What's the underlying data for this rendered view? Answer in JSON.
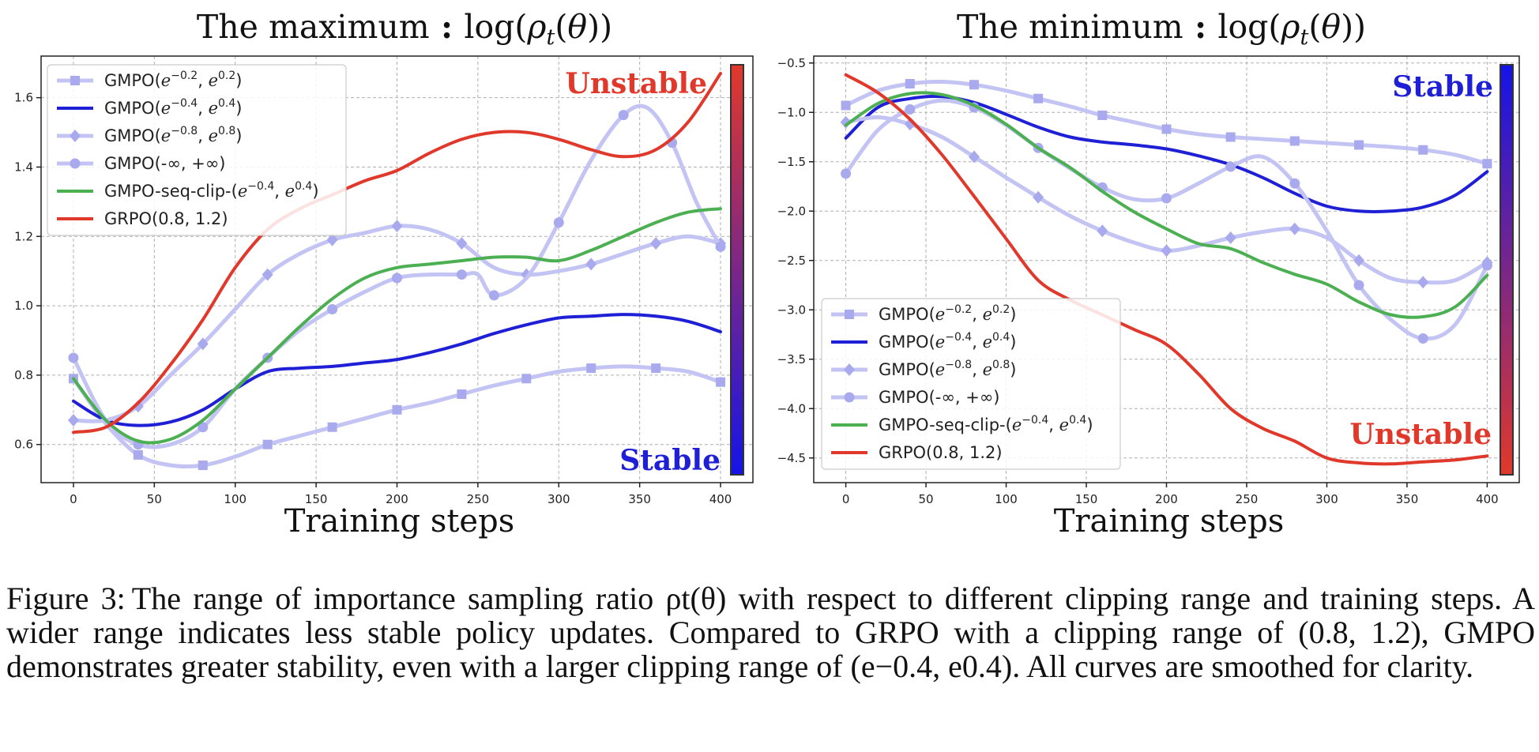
{
  "caption": {
    "label": "Figure 3:",
    "text": "The range of importance sampling ratio ρt(θ) with respect to different clipping range and training steps. A wider range indicates less stable policy updates. Compared to GRPO with a clipping range of (0.8, 1.2), GMPO demonstrates greater stability, even with a larger clipping range of (e−0.4, e0.4). All curves are smoothed for clarity."
  },
  "colors": {
    "faint": "#c3c3f4",
    "faint_marker": "#a9a9ee",
    "blue": "#1f1fd6",
    "green": "#4cb053",
    "red": "#e0392b",
    "grid": "#b0b0b0"
  },
  "chart_data": [
    {
      "type": "line",
      "title": "The maximum : log(ρt(θ))",
      "xlabel": "Training steps",
      "ylabel": "",
      "xlim": [
        -20,
        420
      ],
      "ylim": [
        0.49,
        1.72
      ],
      "xticks": [
        0,
        50,
        100,
        150,
        200,
        250,
        300,
        350,
        400
      ],
      "yticks": [
        0.6,
        0.8,
        1.0,
        1.2,
        1.4,
        1.6
      ],
      "ytick_labels": [
        "0.6",
        "0.8",
        "1.0",
        "1.2",
        "1.4",
        "1.6"
      ],
      "grid": true,
      "legend_position": "top-left",
      "colorbar": {
        "top_label": "Unstable",
        "bottom_label": "Stable",
        "top_color": "#e0392b",
        "bottom_color": "#1414e6"
      },
      "series": [
        {
          "name": "GMPO(e^{-0.2}, e^{0.2})",
          "legend": [
            "GMPO(",
            "e",
            "−0.2",
            ", ",
            "e",
            "0.2",
            ")"
          ],
          "style": "faint",
          "marker": "square",
          "x": [
            0,
            20,
            40,
            60,
            80,
            100,
            120,
            140,
            160,
            180,
            200,
            220,
            240,
            260,
            280,
            300,
            320,
            340,
            360,
            380,
            400
          ],
          "y": [
            0.79,
            0.66,
            0.57,
            0.54,
            0.54,
            0.565,
            0.6,
            0.625,
            0.65,
            0.675,
            0.7,
            0.72,
            0.745,
            0.77,
            0.79,
            0.81,
            0.82,
            0.825,
            0.82,
            0.81,
            0.78
          ]
        },
        {
          "name": "GMPO(e^{-0.4}, e^{0.4})",
          "legend": [
            "GMPO(",
            "e",
            "−0.4",
            ", ",
            "e",
            "0.4",
            ")"
          ],
          "style": "blue",
          "marker": "none",
          "x": [
            0,
            20,
            40,
            60,
            80,
            100,
            120,
            140,
            160,
            180,
            200,
            220,
            240,
            260,
            280,
            300,
            320,
            340,
            360,
            380,
            400
          ],
          "y": [
            0.725,
            0.67,
            0.655,
            0.665,
            0.7,
            0.76,
            0.81,
            0.82,
            0.825,
            0.835,
            0.845,
            0.865,
            0.89,
            0.92,
            0.945,
            0.965,
            0.97,
            0.975,
            0.97,
            0.955,
            0.925
          ]
        },
        {
          "name": "GMPO(e^{-0.8}, e^{0.8})",
          "legend": [
            "GMPO(",
            "e",
            "−0.8",
            ", ",
            "e",
            "0.8",
            ")"
          ],
          "style": "faint",
          "marker": "diamond",
          "x": [
            0,
            20,
            40,
            60,
            80,
            100,
            120,
            140,
            160,
            180,
            200,
            220,
            240,
            260,
            280,
            300,
            320,
            340,
            360,
            380,
            400
          ],
          "y": [
            0.67,
            0.67,
            0.71,
            0.8,
            0.89,
            0.99,
            1.09,
            1.15,
            1.19,
            1.21,
            1.23,
            1.22,
            1.18,
            1.11,
            1.09,
            1.1,
            1.12,
            1.15,
            1.18,
            1.2,
            1.18
          ]
        },
        {
          "name": "GMPO(-∞, +∞)",
          "legend": [
            "GMPO(-∞, +∞)"
          ],
          "style": "faint",
          "marker": "circle",
          "x": [
            0,
            20,
            40,
            60,
            80,
            100,
            120,
            140,
            160,
            180,
            200,
            220,
            240,
            250,
            260,
            280,
            300,
            320,
            340,
            355,
            370,
            385,
            400
          ],
          "y": [
            0.85,
            0.67,
            0.6,
            0.6,
            0.65,
            0.76,
            0.85,
            0.93,
            0.99,
            1.04,
            1.08,
            1.09,
            1.09,
            1.09,
            1.03,
            1.08,
            1.24,
            1.42,
            1.55,
            1.57,
            1.47,
            1.3,
            1.17
          ]
        },
        {
          "name": "GMPO-seq-clip-(e^{-0.4}, e^{0.4})",
          "legend": [
            "GMPO-seq-clip-(",
            "e",
            "−0.4",
            ", ",
            "e",
            "0.4",
            ")"
          ],
          "style": "green",
          "marker": "none",
          "x": [
            0,
            20,
            40,
            60,
            80,
            100,
            120,
            140,
            160,
            180,
            200,
            220,
            240,
            260,
            280,
            300,
            320,
            340,
            360,
            380,
            400
          ],
          "y": [
            0.79,
            0.67,
            0.61,
            0.615,
            0.67,
            0.76,
            0.85,
            0.94,
            1.02,
            1.08,
            1.11,
            1.12,
            1.13,
            1.14,
            1.14,
            1.13,
            1.16,
            1.2,
            1.24,
            1.27,
            1.28
          ]
        },
        {
          "name": "GRPO(0.8, 1.2)",
          "legend": [
            "GRPO(0.8, 1.2)"
          ],
          "style": "red",
          "marker": "none",
          "x": [
            0,
            20,
            40,
            60,
            80,
            100,
            120,
            140,
            160,
            180,
            200,
            220,
            240,
            260,
            280,
            300,
            320,
            340,
            360,
            380,
            400
          ],
          "y": [
            0.635,
            0.65,
            0.72,
            0.83,
            0.96,
            1.11,
            1.22,
            1.28,
            1.32,
            1.36,
            1.39,
            1.44,
            1.48,
            1.5,
            1.5,
            1.48,
            1.45,
            1.43,
            1.45,
            1.53,
            1.67
          ]
        }
      ]
    },
    {
      "type": "line",
      "title": "The minimum : log(ρt(θ))",
      "xlabel": "Training steps",
      "ylabel": "",
      "xlim": [
        -20,
        420
      ],
      "ylim": [
        -4.75,
        -0.43
      ],
      "xticks": [
        0,
        50,
        100,
        150,
        200,
        250,
        300,
        350,
        400
      ],
      "yticks": [
        -0.5,
        -1.0,
        -1.5,
        -2.0,
        -2.5,
        -3.0,
        -3.5,
        -4.0,
        -4.5
      ],
      "ytick_labels": [
        "−0.5",
        "−1.0",
        "−1.5",
        "−2.0",
        "−2.5",
        "−3.0",
        "−3.5",
        "−4.0",
        "−4.5"
      ],
      "grid": true,
      "legend_position": "bottom-left",
      "colorbar": {
        "top_label": "Stable",
        "bottom_label": "Unstable",
        "top_color": "#1414e6",
        "bottom_color": "#e0392b"
      },
      "series": [
        {
          "name": "GMPO(e^{-0.2}, e^{0.2})",
          "legend": [
            "GMPO(",
            "e",
            "−0.2",
            ", ",
            "e",
            "0.2",
            ")"
          ],
          "style": "faint",
          "marker": "square",
          "x": [
            0,
            20,
            40,
            60,
            80,
            100,
            120,
            140,
            160,
            180,
            200,
            220,
            240,
            260,
            280,
            300,
            320,
            340,
            360,
            380,
            400
          ],
          "y": [
            -0.93,
            -0.78,
            -0.71,
            -0.69,
            -0.72,
            -0.78,
            -0.86,
            -0.94,
            -1.03,
            -1.1,
            -1.17,
            -1.22,
            -1.25,
            -1.27,
            -1.29,
            -1.31,
            -1.33,
            -1.35,
            -1.38,
            -1.43,
            -1.52
          ]
        },
        {
          "name": "GMPO(e^{-0.4}, e^{0.4})",
          "legend": [
            "GMPO(",
            "e",
            "−0.4",
            ", ",
            "e",
            "0.4",
            ")"
          ],
          "style": "blue",
          "marker": "none",
          "x": [
            0,
            20,
            40,
            60,
            80,
            100,
            120,
            140,
            160,
            180,
            200,
            220,
            240,
            260,
            280,
            300,
            320,
            340,
            360,
            380,
            400
          ],
          "y": [
            -1.26,
            -0.95,
            -0.86,
            -0.84,
            -0.9,
            -1.02,
            -1.15,
            -1.25,
            -1.3,
            -1.33,
            -1.37,
            -1.44,
            -1.53,
            -1.66,
            -1.82,
            -1.95,
            -2.0,
            -2.0,
            -1.96,
            -1.84,
            -1.6
          ]
        },
        {
          "name": "GMPO(e^{-0.8}, e^{0.8})",
          "legend": [
            "GMPO(",
            "e",
            "−0.8",
            ", ",
            "e",
            "0.8",
            ")"
          ],
          "style": "faint",
          "marker": "diamond",
          "x": [
            0,
            20,
            40,
            60,
            80,
            100,
            120,
            140,
            160,
            180,
            200,
            220,
            240,
            260,
            280,
            300,
            320,
            340,
            360,
            380,
            400
          ],
          "y": [
            -1.1,
            -1.05,
            -1.12,
            -1.25,
            -1.45,
            -1.66,
            -1.86,
            -2.05,
            -2.2,
            -2.32,
            -2.4,
            -2.35,
            -2.27,
            -2.21,
            -2.18,
            -2.27,
            -2.5,
            -2.68,
            -2.72,
            -2.7,
            -2.52
          ]
        },
        {
          "name": "GMPO(-∞, +∞)",
          "legend": [
            "GMPO(-∞, +∞)"
          ],
          "style": "faint",
          "marker": "circle",
          "x": [
            0,
            20,
            40,
            60,
            80,
            100,
            120,
            140,
            160,
            180,
            200,
            220,
            240,
            260,
            280,
            300,
            320,
            340,
            360,
            380,
            400
          ],
          "y": [
            -1.62,
            -1.18,
            -0.97,
            -0.88,
            -0.95,
            -1.13,
            -1.36,
            -1.57,
            -1.76,
            -1.88,
            -1.87,
            -1.72,
            -1.55,
            -1.45,
            -1.72,
            -2.2,
            -2.75,
            -3.1,
            -3.29,
            -3.15,
            -2.55
          ]
        },
        {
          "name": "GMPO-seq-clip-(e^{-0.4}, e^{0.4})",
          "legend": [
            "GMPO-seq-clip-(",
            "e",
            "−0.4",
            ", ",
            "e",
            "0.4",
            ")"
          ],
          "style": "green",
          "marker": "none",
          "x": [
            0,
            20,
            40,
            60,
            80,
            100,
            120,
            140,
            160,
            180,
            200,
            220,
            240,
            260,
            280,
            300,
            320,
            340,
            360,
            380,
            400
          ],
          "y": [
            -1.13,
            -0.91,
            -0.81,
            -0.82,
            -0.93,
            -1.12,
            -1.36,
            -1.56,
            -1.8,
            -2.01,
            -2.18,
            -2.33,
            -2.38,
            -2.52,
            -2.64,
            -2.74,
            -2.92,
            -3.05,
            -3.07,
            -2.97,
            -2.65
          ]
        },
        {
          "name": "GRPO(0.8, 1.2)",
          "legend": [
            "GRPO(0.8, 1.2)"
          ],
          "style": "red",
          "marker": "none",
          "x": [
            0,
            20,
            40,
            60,
            80,
            100,
            120,
            140,
            160,
            180,
            200,
            220,
            240,
            260,
            280,
            300,
            320,
            340,
            360,
            380,
            400
          ],
          "y": [
            -0.62,
            -0.8,
            -1.07,
            -1.43,
            -1.85,
            -2.28,
            -2.7,
            -2.9,
            -3.05,
            -3.2,
            -3.35,
            -3.65,
            -4.0,
            -4.2,
            -4.33,
            -4.5,
            -4.55,
            -4.56,
            -4.54,
            -4.52,
            -4.48
          ]
        }
      ]
    }
  ]
}
